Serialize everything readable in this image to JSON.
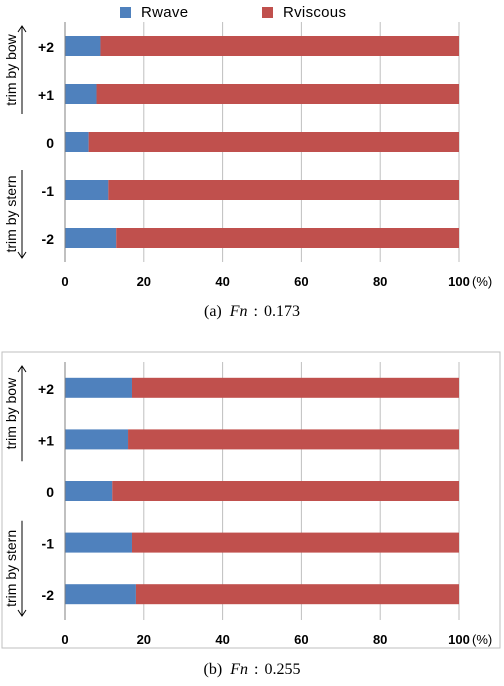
{
  "legend": [
    {
      "label": "Rwave",
      "color": "#4f81bd"
    },
    {
      "label": "Rviscous",
      "color": "#c0504d"
    }
  ],
  "chart_data": [
    {
      "type": "bar",
      "orientation": "horizontal",
      "stacked": true,
      "percent": true,
      "categories": [
        "+2",
        "+1",
        "0",
        "-1",
        "-2"
      ],
      "series": [
        {
          "name": "Rwave",
          "color": "#4f81bd",
          "values": [
            9,
            8,
            6,
            11,
            13
          ]
        },
        {
          "name": "Rviscous",
          "color": "#c0504d",
          "values": [
            91,
            92,
            94,
            89,
            87
          ]
        }
      ],
      "xlim": [
        0,
        100
      ],
      "xticks": [
        "0",
        "20",
        "40",
        "60",
        "80",
        "100"
      ],
      "xunit": "(%)",
      "group_labels": [
        "trim by bow",
        "trim by stern"
      ],
      "caption": {
        "prefix": "(a)",
        "fn": "Fn",
        "sep": ":",
        "value": "0.173"
      },
      "grid": true,
      "legend_position": "top"
    },
    {
      "type": "bar",
      "orientation": "horizontal",
      "stacked": true,
      "percent": true,
      "categories": [
        "+2",
        "+1",
        "0",
        "-1",
        "-2"
      ],
      "series": [
        {
          "name": "Rwave",
          "color": "#4f81bd",
          "values": [
            17,
            16,
            12,
            17,
            18
          ]
        },
        {
          "name": "Rviscous",
          "color": "#c0504d",
          "values": [
            83,
            84,
            88,
            83,
            82
          ]
        }
      ],
      "xlim": [
        0,
        100
      ],
      "xticks": [
        "0",
        "20",
        "40",
        "60",
        "80",
        "100"
      ],
      "xunit": "(%)",
      "group_labels": [
        "trim by bow",
        "trim by stern"
      ],
      "caption": {
        "prefix": "(b)",
        "fn": "Fn",
        "sep": ":",
        "value": "0.255"
      },
      "grid": true,
      "legend_position": "top"
    }
  ]
}
